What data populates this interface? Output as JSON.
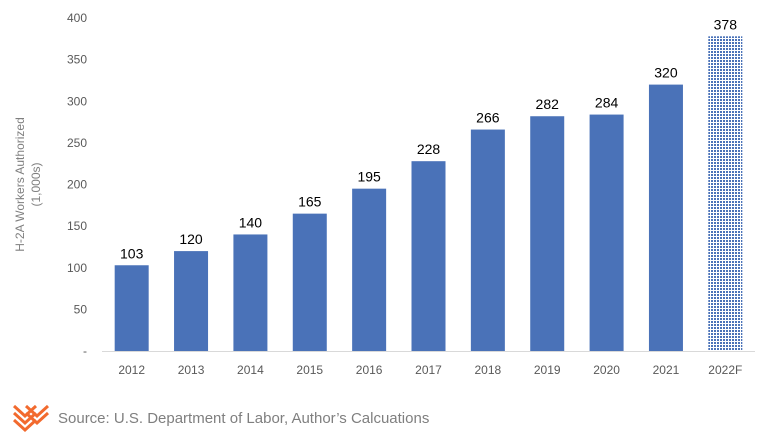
{
  "chart_data": {
    "type": "bar",
    "ylabel_lines": [
      "H-2A Workers Authorized",
      "(1,000s)"
    ],
    "categories": [
      "2012",
      "2013",
      "2014",
      "2015",
      "2016",
      "2017",
      "2018",
      "2019",
      "2020",
      "2021",
      "2022F"
    ],
    "values": [
      103,
      120,
      140,
      165,
      195,
      228,
      266,
      282,
      284,
      320,
      378
    ],
    "data_labels": [
      "103",
      "120",
      "140",
      "165",
      "195",
      "228",
      "266",
      "282",
      "284",
      "320",
      "378"
    ],
    "forecast_index": 10,
    "ylim": [
      0,
      400
    ],
    "yticks": [
      0,
      50,
      100,
      150,
      200,
      250,
      300,
      350,
      400
    ],
    "ytick_labels": [
      "-",
      "50",
      "100",
      "150",
      "200",
      "250",
      "300",
      "350",
      "400"
    ],
    "grid": false,
    "legend": "none",
    "bar_color": "#4a72b8",
    "forecast_pattern_color": "#4a72b8"
  },
  "source": {
    "text": "Source: U.S. Department of Labor, Author’s Calcuations",
    "logo_icon": "chevron-logo-icon",
    "logo_color": "#f26a2e"
  }
}
